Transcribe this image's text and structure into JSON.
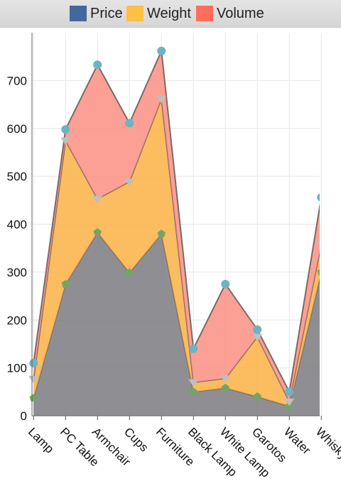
{
  "legend": [
    {
      "label": "Price",
      "color": "#44679c"
    },
    {
      "label": "Weight",
      "color": "#ffc043"
    },
    {
      "label": "Volume",
      "color": "#ff6e5a"
    }
  ],
  "chart_data": {
    "type": "area",
    "stacked": true,
    "title": "",
    "xlabel": "",
    "ylabel": "",
    "categories": [
      "Lamp",
      "PC Table",
      "Armchair",
      "Cups",
      "Furniture",
      "Black Lamp",
      "White Lamp",
      "Garotos",
      "Water",
      "Whisky"
    ],
    "x_visible_range": [
      -0.05,
      8.95
    ],
    "series": [
      {
        "name": "Price",
        "values": [
          37,
          275,
          383,
          299,
          380,
          50,
          58,
          40,
          20,
          300
        ],
        "color": "#7b7b80",
        "marker": "pentagon",
        "marker_color": "#72a565"
      },
      {
        "name": "Weight",
        "values": [
          40,
          300,
          70,
          190,
          282,
          20,
          20,
          125,
          10,
          58
        ],
        "color": "#fbb044",
        "marker": "triangle-down",
        "marker_color": "#bfbfbf"
      },
      {
        "name": "Volume",
        "values": [
          33,
          23,
          280,
          122,
          100,
          70,
          197,
          15,
          20,
          98
        ],
        "color": "#fb8f82",
        "marker": "circle",
        "marker_color": "#6eb3c3"
      }
    ],
    "ylim": [
      0,
      800
    ],
    "yticks": [
      0,
      100,
      200,
      300,
      400,
      500,
      600,
      700
    ],
    "grid": true,
    "legend_position": "top"
  }
}
